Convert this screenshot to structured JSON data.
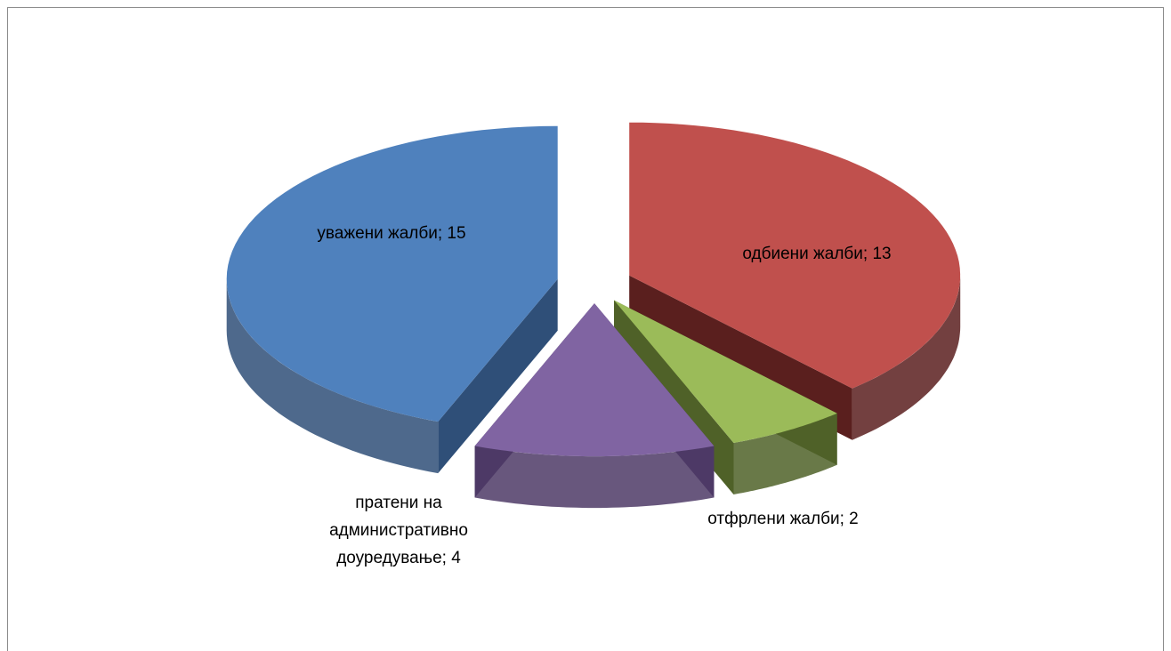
{
  "chart_data": {
    "type": "pie3d",
    "values": [
      15,
      13,
      2,
      4
    ],
    "value_labels": [
      "уважени жалби; 15",
      "одбиени жалби; 13",
      "отфрлени жалби; 2",
      "пратени на административно доуредување; 4"
    ],
    "colors": [
      "#4f81bd",
      "#c0504d",
      "#9bbb59",
      "#8064a2"
    ],
    "side_colors": [
      "#2f4f78",
      "#5a1f1e",
      "#4f6128",
      "#4d3a66"
    ],
    "exploded": true
  }
}
